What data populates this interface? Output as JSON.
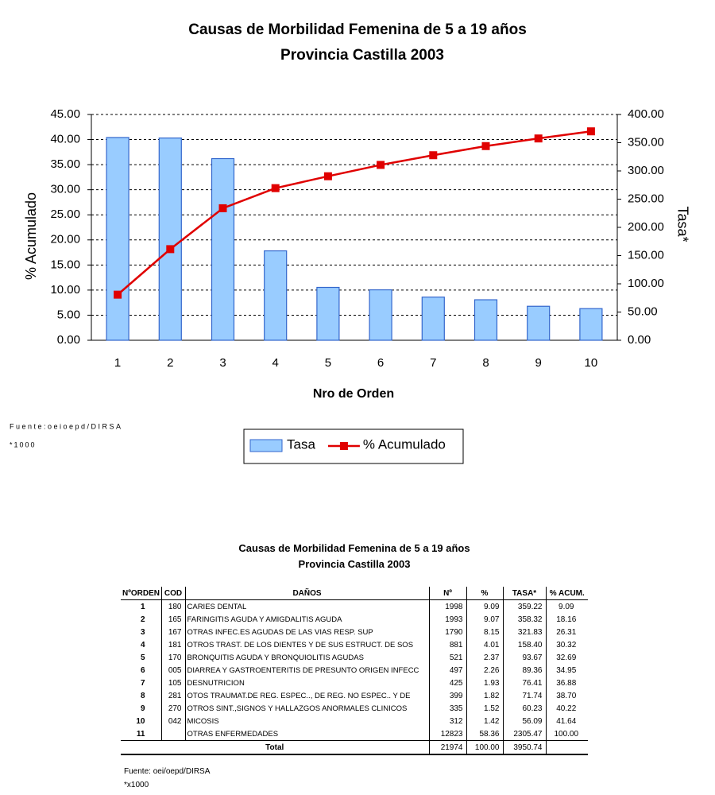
{
  "chart_data": {
    "type": "bar",
    "title": "Causas de Morbilidad Femenina de 5 a 19 años",
    "subtitle": "Provincia Castilla 2003",
    "x_label": "Nro de Orden",
    "y_label": "% Acumulado",
    "y2_label": "Tasa*",
    "categories": [
      "1",
      "2",
      "3",
      "4",
      "5",
      "6",
      "7",
      "8",
      "9",
      "10"
    ],
    "series": [
      {
        "name": "Tasa",
        "type": "bar",
        "axis": "y2",
        "color": "#99ccff",
        "stroke": "#3366cc",
        "values": [
          359.22,
          358.32,
          321.83,
          158.4,
          93.67,
          89.36,
          76.41,
          71.74,
          60.23,
          56.09
        ]
      },
      {
        "name": "% Acumulado",
        "type": "line",
        "color": "#e00000",
        "values": [
          9.09,
          18.16,
          26.31,
          30.32,
          32.69,
          34.95,
          36.88,
          38.7,
          40.22,
          41.64
        ]
      }
    ],
    "ylim": [
      0,
      45
    ],
    "yticks": [
      {
        "value": 0,
        "label": "0.00"
      },
      {
        "value": 5,
        "label": "5.00"
      },
      {
        "value": 10,
        "label": "10.00"
      },
      {
        "value": 15,
        "label": "15.00"
      },
      {
        "value": 20,
        "label": "20.00"
      },
      {
        "value": 25,
        "label": "25.00"
      },
      {
        "value": 30,
        "label": "30.00"
      },
      {
        "value": 35,
        "label": "35.00"
      },
      {
        "value": 40,
        "label": "40.00"
      },
      {
        "value": 45,
        "label": "45.00"
      }
    ],
    "y2lim": [
      0,
      400
    ],
    "y2ticks": [
      {
        "value": 0,
        "label": "0.00"
      },
      {
        "value": 50,
        "label": "50.00"
      },
      {
        "value": 100,
        "label": "100.00"
      },
      {
        "value": 150,
        "label": "150.00"
      },
      {
        "value": 200,
        "label": "200.00"
      },
      {
        "value": 250,
        "label": "250.00"
      },
      {
        "value": 300,
        "label": "300.00"
      },
      {
        "value": 350,
        "label": "350.00"
      },
      {
        "value": 400,
        "label": "400.00"
      }
    ],
    "grid": true,
    "legend": "bottom",
    "source": "Fuente:oeioepd/DIRSA",
    "note": "*1000"
  },
  "table": {
    "title": "Causas de Morbilidad Femenina de 5 a 19 años",
    "subtitle": "Provincia Castilla 2003",
    "headers": [
      "NºORDEN",
      "COD",
      "DAÑOS",
      "Nº",
      "%",
      "TASA*",
      "% ACUM."
    ],
    "rows": [
      [
        "1",
        "180",
        "CARIES DENTAL",
        "1998",
        "9.09",
        "359.22",
        "9.09"
      ],
      [
        "2",
        "165",
        "FARINGITIS AGUDA Y AMIGDALITIS AGUDA",
        "1993",
        "9.07",
        "358.32",
        "18.16"
      ],
      [
        "3",
        "167",
        "OTRAS INFEC.ES AGUDAS DE LAS VIAS RESP. SUP",
        "1790",
        "8.15",
        "321.83",
        "26.31"
      ],
      [
        "4",
        "181",
        "OTROS TRAST. DE LOS DIENTES Y DE SUS ESTRUCT. DE SOS",
        "881",
        "4.01",
        "158.40",
        "30.32"
      ],
      [
        "5",
        "170",
        "BRONQUITIS AGUDA Y BRONQUIOLITIS AGUDAS",
        "521",
        "2.37",
        "93.67",
        "32.69"
      ],
      [
        "6",
        "005",
        "DIARREA Y GASTROENTERITIS DE PRESUNTO ORIGEN INFECC",
        "497",
        "2.26",
        "89.36",
        "34.95"
      ],
      [
        "7",
        "105",
        "DESNUTRICION",
        "425",
        "1.93",
        "76.41",
        "36.88"
      ],
      [
        "8",
        "281",
        "OTOS TRAUMAT.DE REG. ESPEC.., DE REG. NO ESPEC.. Y DE",
        "399",
        "1.82",
        "71.74",
        "38.70"
      ],
      [
        "9",
        "270",
        "OTROS SINT.,SIGNOS Y HALLAZGOS ANORMALES CLINICOS",
        "335",
        "1.52",
        "60.23",
        "40.22"
      ],
      [
        "10",
        "042",
        "MICOSIS",
        "312",
        "1.42",
        "56.09",
        "41.64"
      ],
      [
        "11",
        null,
        "OTRAS ENFERMEDADES",
        "12823",
        "58.36",
        "2305.47",
        "100.00"
      ]
    ],
    "total": [
      "Total",
      "21974",
      "100.00",
      "3950.74"
    ],
    "source": "Fuente: oei/oepd/DIRSA",
    "note": "*x1000"
  }
}
